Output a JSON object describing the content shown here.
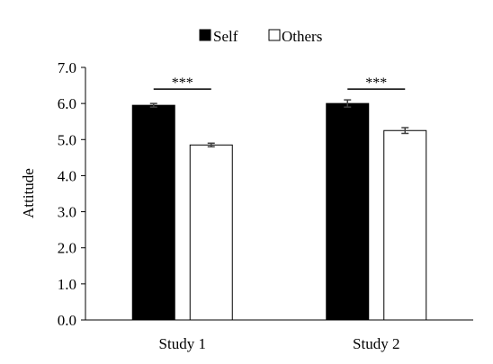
{
  "chart_data": {
    "type": "bar",
    "ylabel": "Attitude",
    "ylim": [
      0,
      7
    ],
    "yticks": [
      "0.0",
      "1.0",
      "2.0",
      "3.0",
      "4.0",
      "5.0",
      "6.0",
      "7.0"
    ],
    "categories": [
      "Study 1",
      "Study 2"
    ],
    "grid": false,
    "legend_position": "top",
    "series": [
      {
        "name": "Self",
        "color": "#000000",
        "values": [
          5.95,
          6.0
        ],
        "errors": [
          0.05,
          0.1
        ]
      },
      {
        "name": "Others",
        "color": "#ffffff",
        "values": [
          4.85,
          5.25
        ],
        "errors": [
          0.05,
          0.08
        ]
      }
    ],
    "significance": [
      "***",
      "***"
    ]
  }
}
